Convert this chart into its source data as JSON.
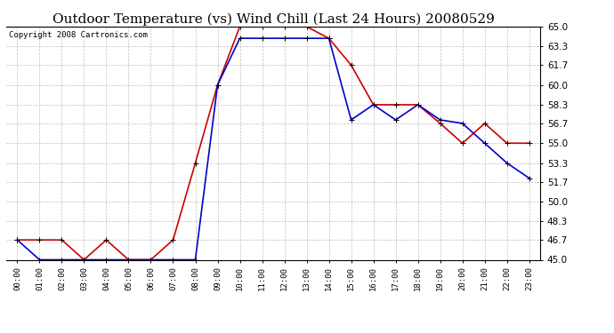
{
  "title": "Outdoor Temperature (vs) Wind Chill (Last 24 Hours) 20080529",
  "copyright": "Copyright 2008 Cartronics.com",
  "hours": [
    "00:00",
    "01:00",
    "02:00",
    "03:00",
    "04:00",
    "05:00",
    "06:00",
    "07:00",
    "08:00",
    "09:00",
    "10:00",
    "11:00",
    "12:00",
    "13:00",
    "14:00",
    "15:00",
    "16:00",
    "17:00",
    "18:00",
    "19:00",
    "20:00",
    "21:00",
    "22:00",
    "23:00"
  ],
  "temp": [
    46.7,
    46.7,
    46.7,
    45.0,
    46.7,
    45.0,
    45.0,
    46.7,
    53.3,
    60.0,
    65.0,
    65.0,
    65.0,
    65.0,
    64.0,
    61.7,
    58.3,
    58.3,
    58.3,
    56.7,
    55.0,
    56.7,
    55.0,
    55.0
  ],
  "windchill": [
    46.7,
    45.0,
    45.0,
    45.0,
    45.0,
    45.0,
    45.0,
    45.0,
    45.0,
    60.0,
    64.0,
    64.0,
    64.0,
    64.0,
    64.0,
    57.0,
    58.3,
    57.0,
    58.3,
    57.0,
    56.7,
    55.0,
    53.3,
    52.0
  ],
  "temp_color": "#cc0000",
  "windchill_color": "#0000cc",
  "bg_color": "#ffffff",
  "grid_color": "#b0b0b0",
  "ylim": [
    45.0,
    65.0
  ],
  "yticks": [
    45.0,
    46.7,
    48.3,
    50.0,
    51.7,
    53.3,
    55.0,
    56.7,
    58.3,
    60.0,
    61.7,
    63.3,
    65.0
  ],
  "title_fontsize": 11,
  "copyright_fontsize": 6.5,
  "marker": "+"
}
